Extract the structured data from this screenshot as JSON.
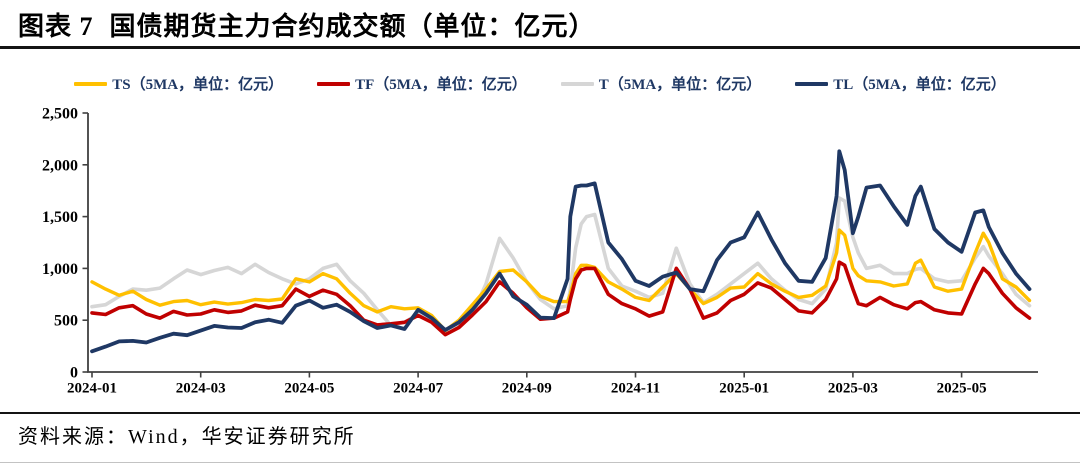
{
  "header": {
    "figure_label": "图表 7",
    "title": "国债期货主力合约成交额（单位：亿元）"
  },
  "footer": {
    "source": "资料来源：Wind，华安证券研究所"
  },
  "colors": {
    "ts_yellow": "#FFC000",
    "tf_red": "#C00000",
    "t_gray": "#D6D6D6",
    "tl_navy": "#1F3864",
    "axis": "#404040",
    "legend_text": "#1F3864"
  },
  "chart_data": {
    "type": "line",
    "title": "国债期货主力合约成交额（单位：亿元）",
    "xlabel": "",
    "ylabel": "",
    "grid": false,
    "legend_position": "top",
    "ylim": [
      0,
      2500
    ],
    "x_axis": {
      "tick_labels": [
        "2024-01",
        "2024-03",
        "2024-05",
        "2024-07",
        "2024-09",
        "2024-11",
        "2025-01",
        "2025-03",
        "2025-05"
      ],
      "tick_positions_months": [
        0,
        2,
        4,
        6,
        8,
        10,
        12,
        14,
        16
      ]
    },
    "y_axis": {
      "tick_labels": [
        "0",
        "500",
        "1,000",
        "1,500",
        "2,000",
        "2,500"
      ],
      "tick_values": [
        0,
        500,
        1000,
        1500,
        2000,
        2500
      ]
    },
    "legend": [
      {
        "name": "TS",
        "label": "TS（5MA，单位：亿元）",
        "color": "#FFC000"
      },
      {
        "name": "TF",
        "label": "TF（5MA，单位：亿元）",
        "color": "#C00000"
      },
      {
        "name": "T",
        "label": "T（5MA，单位：亿元）",
        "color": "#D6D6D6"
      },
      {
        "name": "TL",
        "label": "TL（5MA，单位：亿元）",
        "color": "#1F3864"
      }
    ],
    "x_months": [
      0,
      0.25,
      0.5,
      0.75,
      1,
      1.25,
      1.5,
      1.75,
      2,
      2.25,
      2.5,
      2.75,
      3,
      3.25,
      3.5,
      3.75,
      4,
      4.25,
      4.5,
      4.75,
      5,
      5.25,
      5.5,
      5.75,
      6,
      6.25,
      6.5,
      6.75,
      7,
      7.25,
      7.5,
      7.75,
      8,
      8.25,
      8.5,
      8.75,
      8.8,
      8.9,
      9,
      9.1,
      9.25,
      9.5,
      9.75,
      10,
      10.25,
      10.5,
      10.75,
      11,
      11.25,
      11.5,
      11.75,
      12,
      12.25,
      12.5,
      12.75,
      13,
      13.25,
      13.5,
      13.7,
      13.75,
      13.85,
      14,
      14.1,
      14.25,
      14.5,
      14.75,
      15,
      15.15,
      15.25,
      15.5,
      15.75,
      16,
      16.25,
      16.4,
      16.5,
      16.75,
      17,
      17.25
    ],
    "series": [
      {
        "name": "T",
        "legend_label": "T（5MA，单位：亿元）",
        "color": "#D6D6D6",
        "width": 3.6,
        "values": [
          630,
          650,
          730,
          800,
          790,
          810,
          900,
          985,
          940,
          980,
          1010,
          950,
          1040,
          960,
          900,
          850,
          900,
          1000,
          1040,
          880,
          760,
          600,
          450,
          480,
          560,
          520,
          390,
          450,
          560,
          850,
          1290,
          1100,
          870,
          700,
          610,
          640,
          800,
          1200,
          1430,
          1500,
          1520,
          1000,
          830,
          780,
          720,
          760,
          1195,
          850,
          670,
          750,
          850,
          950,
          1050,
          900,
          790,
          700,
          660,
          800,
          1250,
          1680,
          1650,
          1300,
          1150,
          1000,
          1030,
          950,
          950,
          990,
          1000,
          900,
          870,
          880,
          1100,
          1210,
          1120,
          950,
          750,
          640
        ]
      },
      {
        "name": "TS",
        "legend_label": "TS（5MA，单位：亿元）",
        "color": "#FFC000",
        "width": 3.4,
        "values": [
          870,
          800,
          740,
          780,
          700,
          645,
          680,
          690,
          650,
          675,
          655,
          670,
          700,
          690,
          705,
          900,
          870,
          950,
          900,
          760,
          640,
          580,
          630,
          610,
          620,
          545,
          400,
          500,
          650,
          800,
          970,
          985,
          870,
          730,
          680,
          680,
          750,
          950,
          1030,
          1030,
          1010,
          870,
          800,
          720,
          690,
          820,
          950,
          800,
          660,
          720,
          810,
          820,
          950,
          850,
          780,
          720,
          740,
          830,
          1150,
          1370,
          1320,
          1000,
          930,
          880,
          870,
          830,
          850,
          1050,
          1080,
          820,
          780,
          800,
          1150,
          1340,
          1250,
          900,
          820,
          690
        ]
      },
      {
        "name": "TF",
        "legend_label": "TF（5MA，单位：亿元）",
        "color": "#C00000",
        "width": 3.6,
        "values": [
          570,
          555,
          620,
          640,
          560,
          520,
          585,
          550,
          560,
          600,
          575,
          590,
          645,
          620,
          640,
          800,
          730,
          790,
          750,
          640,
          500,
          455,
          465,
          480,
          545,
          480,
          360,
          430,
          550,
          680,
          870,
          760,
          620,
          510,
          520,
          580,
          700,
          900,
          985,
          1000,
          1000,
          750,
          660,
          610,
          540,
          580,
          1000,
          800,
          520,
          570,
          690,
          750,
          860,
          810,
          700,
          590,
          570,
          700,
          900,
          1060,
          1030,
          800,
          660,
          640,
          720,
          650,
          610,
          670,
          680,
          600,
          570,
          560,
          850,
          1000,
          950,
          760,
          620,
          520
        ]
      },
      {
        "name": "TL",
        "legend_label": "TL（5MA，单位：亿元）",
        "color": "#1F3864",
        "width": 3.8,
        "values": [
          200,
          245,
          295,
          300,
          285,
          330,
          370,
          355,
          400,
          445,
          430,
          425,
          480,
          505,
          475,
          640,
          690,
          620,
          650,
          580,
          490,
          425,
          450,
          415,
          600,
          520,
          405,
          480,
          600,
          760,
          950,
          730,
          650,
          525,
          520,
          900,
          1500,
          1790,
          1800,
          1800,
          1820,
          1250,
          1090,
          880,
          830,
          920,
          960,
          800,
          780,
          1080,
          1250,
          1300,
          1540,
          1280,
          1050,
          880,
          870,
          1100,
          1700,
          2130,
          1950,
          1340,
          1500,
          1780,
          1800,
          1600,
          1420,
          1700,
          1790,
          1380,
          1250,
          1160,
          1540,
          1560,
          1400,
          1150,
          950,
          800
        ]
      }
    ]
  }
}
